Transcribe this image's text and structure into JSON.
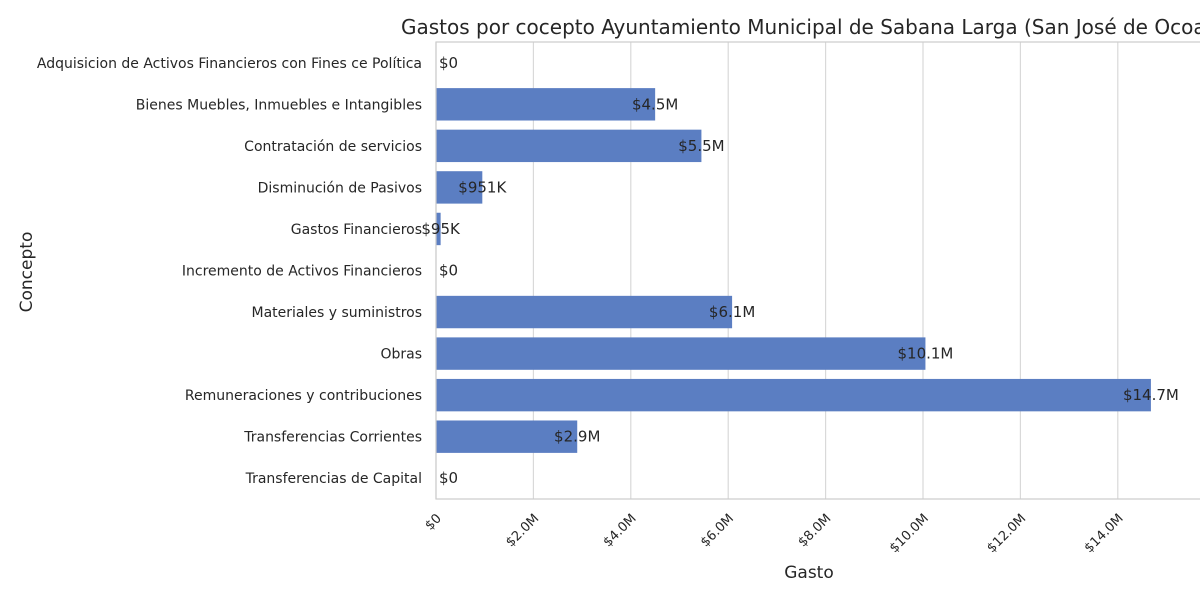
{
  "chart_data": {
    "type": "bar",
    "orientation": "horizontal",
    "title": "Gastos por cocepto Ayuntamiento Municipal de Sabana Larga (San José de Ocoa)",
    "xlabel": "Gasto",
    "ylabel": "Concepto",
    "xlim": [
      0,
      15400000
    ],
    "grid": true,
    "bar_color": "#5b7ec2",
    "categories": [
      "Adquisicion de Activos Financieros con Fines ce Política",
      "Bienes Muebles, Inmuebles e Intangibles",
      "Contratación de servicios",
      "Disminución de Pasivos",
      "Gastos Financieros",
      "Incremento de Activos Financieros",
      "Materiales y suministros",
      "Obras",
      "Remuneraciones y contribuciones",
      "Transferencias Corrientes",
      "Transferencias de Capital"
    ],
    "values": [
      0,
      4500000,
      5450000,
      951000,
      95000,
      0,
      6080000,
      10050000,
      14680000,
      2900000,
      0
    ],
    "data_labels": [
      "$0",
      "$4.5M",
      "$5.5M",
      "$951K",
      "$95K",
      "$0",
      "$6.1M",
      "$10.1M",
      "$14.7M",
      "$2.9M",
      "$0"
    ],
    "x_ticks": [
      0,
      2000000,
      4000000,
      6000000,
      8000000,
      10000000,
      12000000,
      14000000
    ],
    "x_tick_labels": [
      "$0",
      "$2.0M",
      "$4.0M",
      "$6.0M",
      "$8.0M",
      "$10.0M",
      "$12.0M",
      "$14.0M"
    ]
  }
}
